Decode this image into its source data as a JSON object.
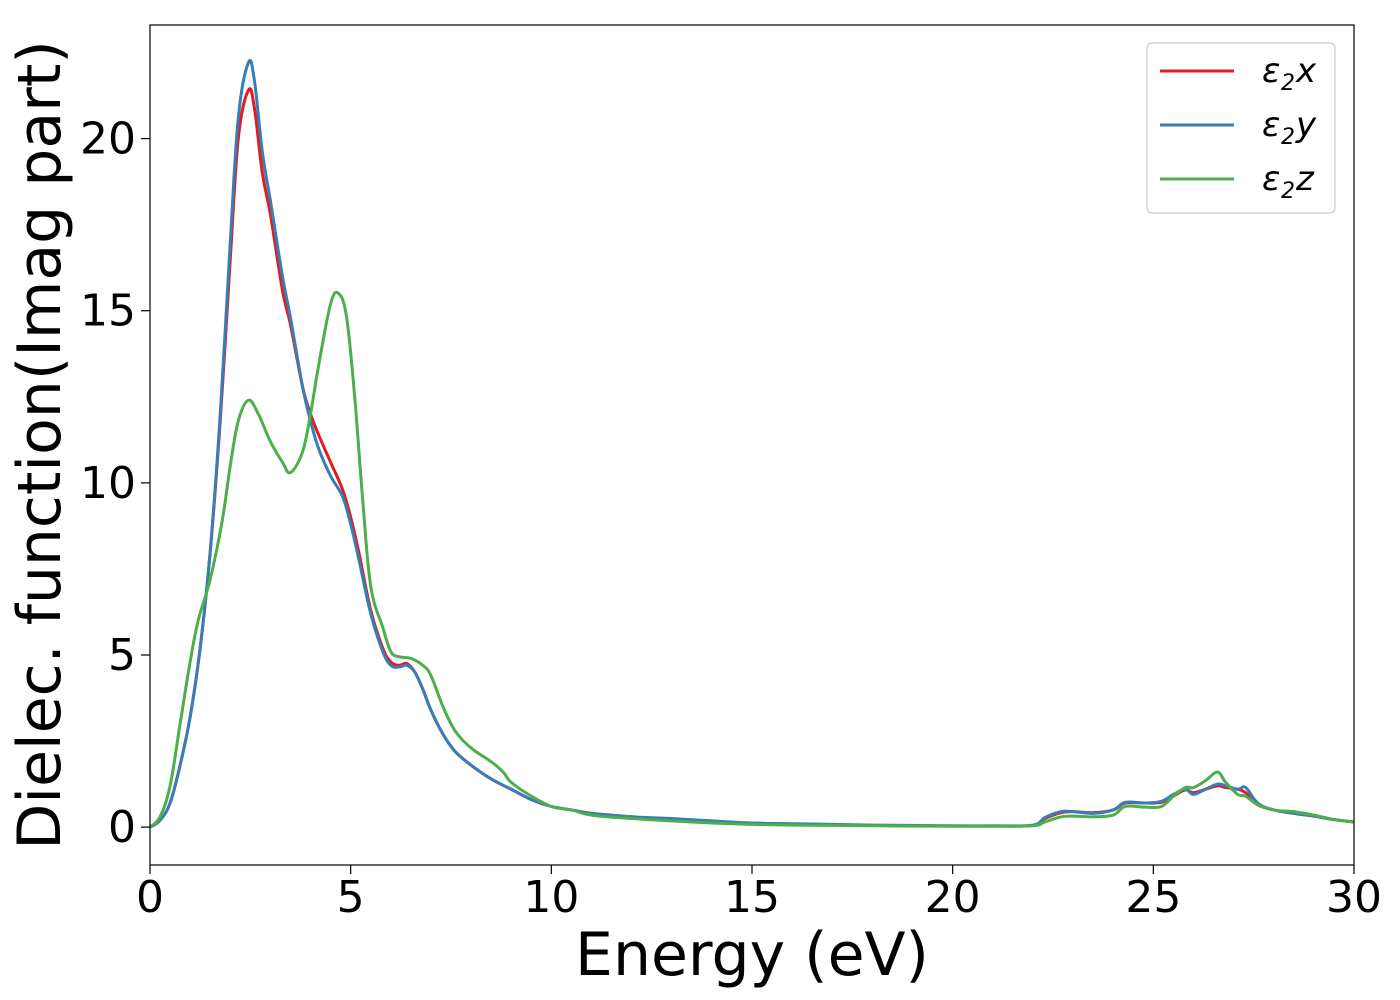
{
  "chart_data": {
    "type": "line",
    "title": "",
    "xlabel": "Energy (eV)",
    "ylabel": "Dielec. function(Imag part)",
    "xlim": [
      0,
      30
    ],
    "ylim": [
      -1.1,
      23.3
    ],
    "xticks": [
      0,
      5,
      10,
      15,
      20,
      25,
      30
    ],
    "yticks": [
      0,
      5,
      10,
      15,
      20
    ],
    "grid": false,
    "legend": "top-right",
    "series": [
      {
        "name": "ε2x",
        "legend_main": "ε",
        "legend_sub": "2",
        "legend_var": "x",
        "color": "#e41a1c",
        "x": [
          0,
          0.25,
          0.5,
          0.75,
          1.0,
          1.25,
          1.5,
          1.75,
          2.0,
          2.2,
          2.45,
          2.6,
          2.8,
          3.0,
          3.3,
          3.5,
          3.8,
          4.0,
          4.2,
          4.5,
          4.8,
          5.0,
          5.2,
          5.5,
          5.8,
          6.0,
          6.2,
          6.4,
          6.6,
          6.8,
          7.0,
          7.3,
          7.6,
          8.0,
          8.5,
          9.0,
          9.5,
          10.0,
          10.5,
          11.0,
          12.0,
          13.0,
          14.0,
          15.0,
          16.0,
          17.0,
          18.0,
          19.0,
          20.0,
          21.0,
          22.0,
          22.3,
          22.7,
          23.0,
          23.5,
          24.0,
          24.3,
          24.8,
          25.2,
          25.5,
          25.8,
          26.0,
          26.3,
          26.6,
          26.8,
          27.1,
          27.3,
          27.6,
          28.0,
          28.5,
          29.0,
          29.5,
          30.0
        ],
        "y": [
          0.0,
          0.2,
          0.7,
          1.8,
          3.2,
          5.2,
          8.0,
          11.8,
          16.5,
          20.0,
          21.4,
          20.9,
          19.0,
          17.8,
          15.6,
          14.6,
          12.8,
          12.0,
          11.4,
          10.6,
          9.8,
          9.0,
          8.0,
          6.3,
          5.2,
          4.8,
          4.7,
          4.75,
          4.5,
          4.0,
          3.4,
          2.7,
          2.2,
          1.8,
          1.4,
          1.1,
          0.8,
          0.6,
          0.5,
          0.4,
          0.3,
          0.2,
          0.15,
          0.1,
          0.08,
          0.06,
          0.05,
          0.04,
          0.03,
          0.03,
          0.05,
          0.25,
          0.42,
          0.45,
          0.42,
          0.5,
          0.7,
          0.7,
          0.72,
          0.9,
          1.08,
          1.0,
          1.1,
          1.2,
          1.15,
          1.1,
          1.0,
          0.65,
          0.5,
          0.4,
          0.32,
          0.22,
          0.15
        ]
      },
      {
        "name": "ε2y",
        "legend_main": "ε",
        "legend_sub": "2",
        "legend_var": "y",
        "color": "#377eb8",
        "x": [
          0,
          0.25,
          0.5,
          0.75,
          1.0,
          1.25,
          1.5,
          1.75,
          2.0,
          2.2,
          2.45,
          2.6,
          2.8,
          3.0,
          3.3,
          3.5,
          3.8,
          4.0,
          4.2,
          4.5,
          4.8,
          5.0,
          5.2,
          5.5,
          5.8,
          6.0,
          6.2,
          6.4,
          6.6,
          6.8,
          7.0,
          7.3,
          7.6,
          8.0,
          8.5,
          9.0,
          9.5,
          10.0,
          10.5,
          11.0,
          12.0,
          13.0,
          14.0,
          15.0,
          16.0,
          17.0,
          18.0,
          19.0,
          20.0,
          21.0,
          22.0,
          22.3,
          22.7,
          23.0,
          23.5,
          24.0,
          24.3,
          24.8,
          25.2,
          25.5,
          25.8,
          26.0,
          26.3,
          26.6,
          26.8,
          27.1,
          27.3,
          27.6,
          28.0,
          28.5,
          29.0,
          29.5,
          30.0
        ],
        "y": [
          0.0,
          0.2,
          0.7,
          1.8,
          3.2,
          5.2,
          8.0,
          12.0,
          17.0,
          20.6,
          22.2,
          21.7,
          19.6,
          18.2,
          16.0,
          14.8,
          12.8,
          11.8,
          11.0,
          10.2,
          9.6,
          8.8,
          7.8,
          6.2,
          5.1,
          4.7,
          4.65,
          4.7,
          4.5,
          4.0,
          3.4,
          2.7,
          2.2,
          1.8,
          1.4,
          1.1,
          0.8,
          0.6,
          0.5,
          0.4,
          0.3,
          0.25,
          0.18,
          0.12,
          0.1,
          0.08,
          0.06,
          0.05,
          0.04,
          0.04,
          0.06,
          0.28,
          0.45,
          0.45,
          0.4,
          0.5,
          0.72,
          0.7,
          0.75,
          0.95,
          1.1,
          0.95,
          1.1,
          1.25,
          1.2,
          1.1,
          1.15,
          0.7,
          0.5,
          0.4,
          0.32,
          0.22,
          0.15
        ]
      },
      {
        "name": "ε2z",
        "legend_main": "ε",
        "legend_sub": "2",
        "legend_var": "z",
        "color": "#4daf4a",
        "x": [
          0,
          0.25,
          0.5,
          0.75,
          1.0,
          1.2,
          1.5,
          1.8,
          2.0,
          2.2,
          2.45,
          2.7,
          3.0,
          3.3,
          3.5,
          3.8,
          4.0,
          4.2,
          4.5,
          4.7,
          4.9,
          5.1,
          5.3,
          5.5,
          5.8,
          6.0,
          6.2,
          6.5,
          6.8,
          7.0,
          7.3,
          7.6,
          8.0,
          8.5,
          8.8,
          9.0,
          9.5,
          10.0,
          10.5,
          11.0,
          12.0,
          13.0,
          14.0,
          15.0,
          16.0,
          17.0,
          18.0,
          19.0,
          20.0,
          21.0,
          22.0,
          22.3,
          22.7,
          23.0,
          23.5,
          24.0,
          24.3,
          24.8,
          25.2,
          25.5,
          25.8,
          26.0,
          26.3,
          26.6,
          26.8,
          27.1,
          27.3,
          27.6,
          28.0,
          28.5,
          29.0,
          29.5,
          30.0
        ],
        "y": [
          0.0,
          0.3,
          1.2,
          3.0,
          4.8,
          6.0,
          7.2,
          8.9,
          10.5,
          11.8,
          12.4,
          12.0,
          11.2,
          10.6,
          10.3,
          10.9,
          12.0,
          13.4,
          15.2,
          15.5,
          14.8,
          12.5,
          9.5,
          7.0,
          5.8,
          5.1,
          4.95,
          4.9,
          4.7,
          4.4,
          3.5,
          2.8,
          2.3,
          1.9,
          1.6,
          1.3,
          0.9,
          0.6,
          0.5,
          0.35,
          0.25,
          0.18,
          0.12,
          0.08,
          0.06,
          0.05,
          0.04,
          0.03,
          0.03,
          0.03,
          0.04,
          0.15,
          0.3,
          0.32,
          0.3,
          0.35,
          0.6,
          0.58,
          0.6,
          0.9,
          1.15,
          1.15,
          1.35,
          1.6,
          1.3,
          0.95,
          0.9,
          0.65,
          0.5,
          0.45,
          0.35,
          0.22,
          0.15
        ]
      }
    ]
  }
}
